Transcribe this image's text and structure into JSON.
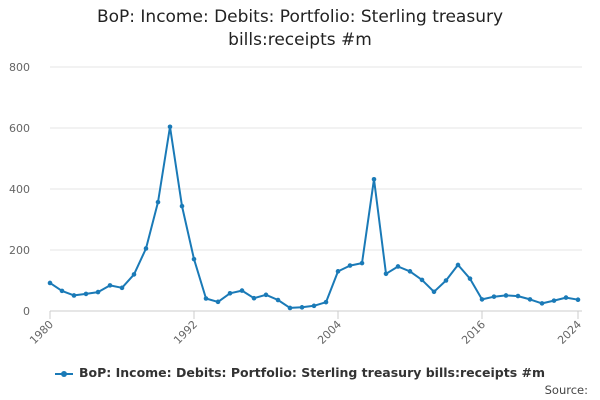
{
  "chart_data": {
    "type": "line",
    "title_lines": [
      "BoP: Income: Debits: Portfolio: Sterling treasury",
      "bills:receipts #m"
    ],
    "x": [
      1980,
      1981,
      1982,
      1983,
      1984,
      1985,
      1986,
      1987,
      1988,
      1989,
      1990,
      1991,
      1992,
      1993,
      1994,
      1995,
      1996,
      1997,
      1998,
      1999,
      2000,
      2001,
      2002,
      2003,
      2004,
      2005,
      2006,
      2007,
      2008,
      2009,
      2010,
      2011,
      2012,
      2013,
      2014,
      2015,
      2016,
      2017,
      2018,
      2019,
      2020,
      2021,
      2022,
      2023,
      2024
    ],
    "series": [
      {
        "name": "BoP: Income: Debits: Portfolio: Sterling treasury bills:receipts #m",
        "color": "#1a7ab7",
        "values": [
          92,
          66,
          51,
          56,
          62,
          84,
          76,
          120,
          205,
          357,
          604,
          344,
          170,
          41,
          30,
          58,
          67,
          42,
          53,
          36,
          10,
          12,
          17,
          29,
          130,
          149,
          157,
          432,
          122,
          146,
          130,
          102,
          63,
          100,
          151,
          106,
          38,
          47,
          51,
          49,
          38,
          25,
          34,
          44,
          37
        ]
      }
    ],
    "x_ticks": [
      "1980",
      "1992",
      "2004",
      "2016",
      "2024"
    ],
    "y_ticks": [
      "0",
      "200",
      "400",
      "600",
      "800"
    ],
    "ylim": [
      0,
      800
    ],
    "xlim": [
      1980,
      2024
    ],
    "grid": "horizontal",
    "legend_position": "bottom"
  },
  "source_label": "Source:"
}
